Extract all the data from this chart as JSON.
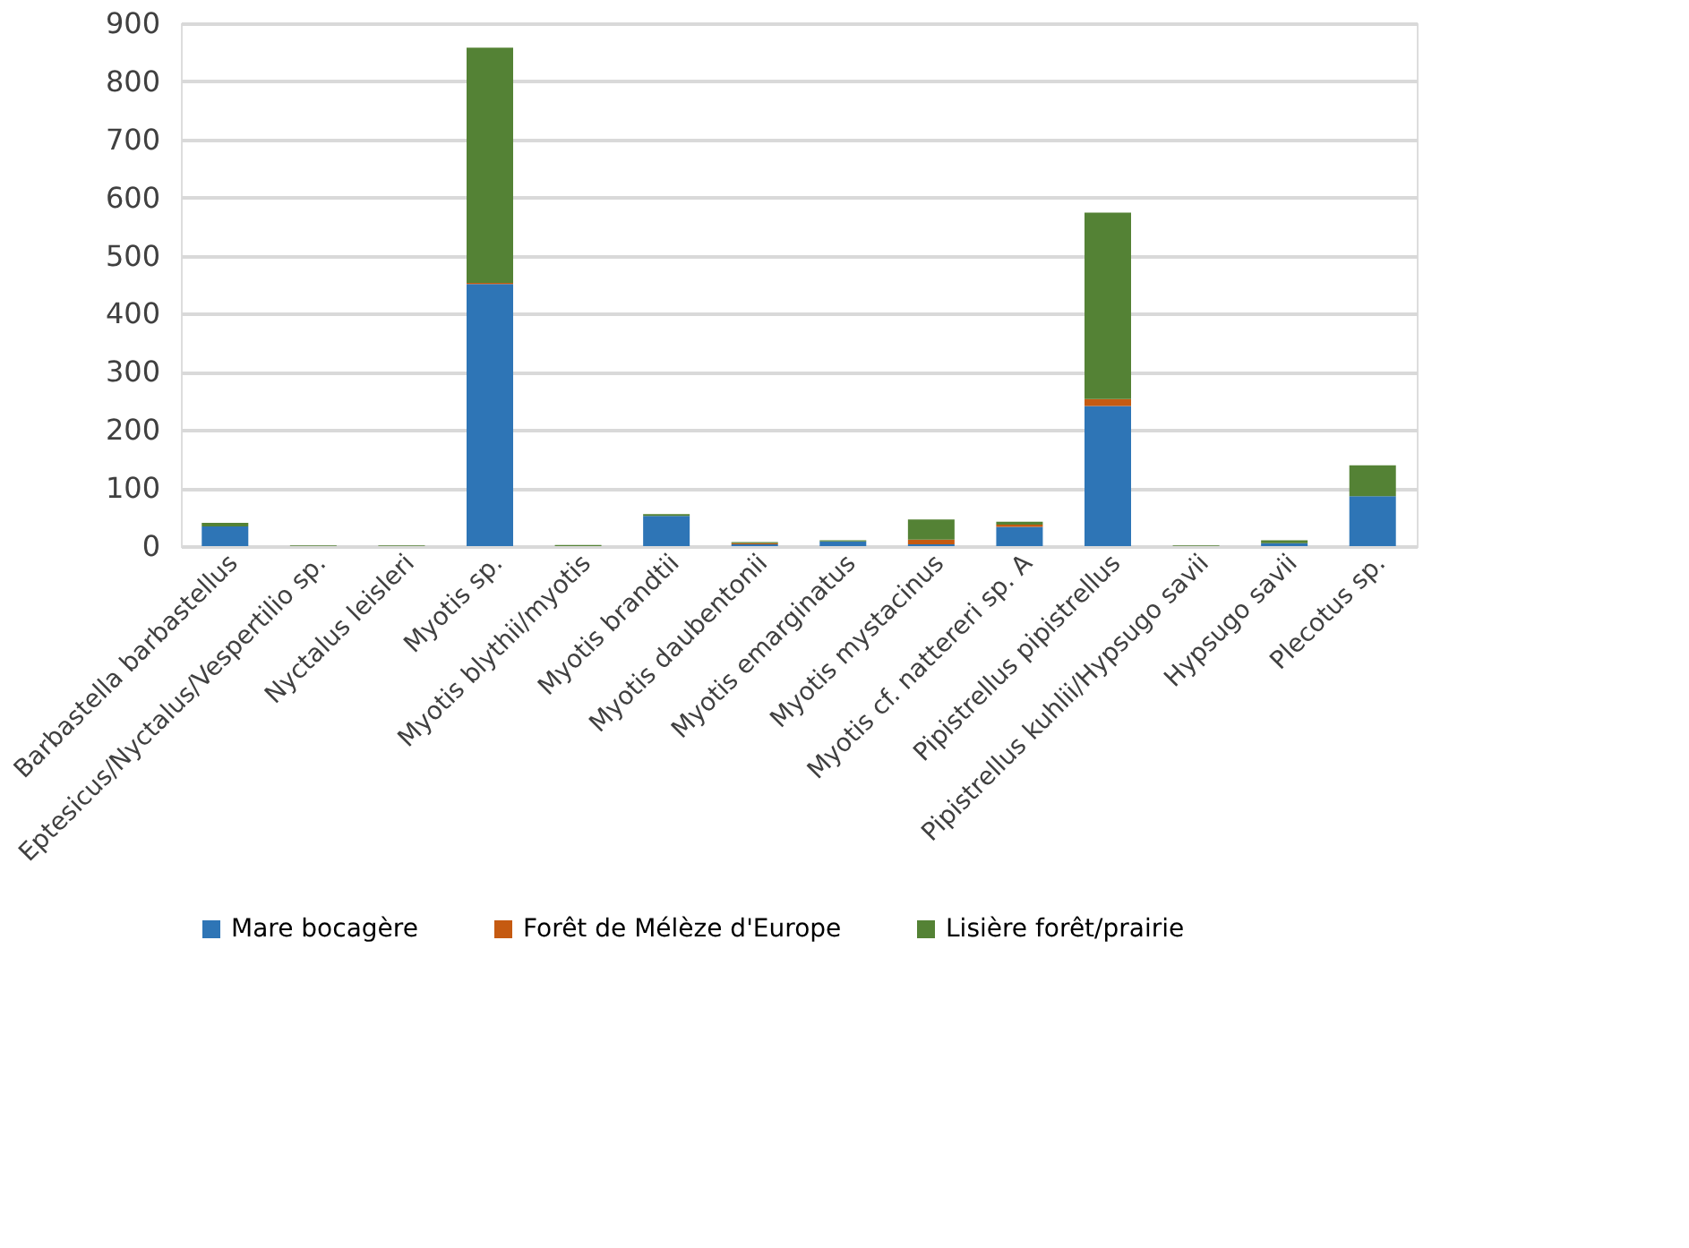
{
  "chart_data": {
    "type": "bar",
    "stacked": true,
    "categories": [
      "Barbastella barbastellus",
      "Eptesicus/Nyctalus/Vespertilio sp.",
      "Nyctalus leisleri",
      "Myotis sp.",
      "Myotis blythii/myotis",
      "Myotis brandtii",
      "Myotis daubentonii",
      "Myotis emarginatus",
      "Myotis mystacinus",
      "Myotis cf. nattereri sp. A",
      "Pipistrellus pipistrellus",
      "Pipistrellus kuhlii/Hypsugo savii",
      "Hypsugo savii",
      "Plecotus sp."
    ],
    "series": [
      {
        "name": "Mare bocagère",
        "color": "#2e75b6",
        "values": [
          34,
          0,
          0,
          451,
          0,
          52,
          3,
          8,
          3,
          33,
          241,
          0,
          5,
          86
        ]
      },
      {
        "name": "Forêt de Mélèze d'Europe",
        "color": "#c55a11",
        "values": [
          0,
          0,
          0,
          2,
          0,
          0,
          2,
          0,
          8,
          4,
          12,
          0,
          0,
          0
        ]
      },
      {
        "name": "Lisière forêt/prairie",
        "color": "#548235",
        "values": [
          6,
          1,
          1,
          405,
          2,
          3,
          2,
          2,
          35,
          5,
          321,
          1,
          5,
          53
        ]
      }
    ],
    "ylim": [
      0,
      900
    ],
    "yticks": [
      0,
      100,
      200,
      300,
      400,
      500,
      600,
      700,
      800,
      900
    ],
    "grid": "y",
    "legend": "bottom"
  }
}
